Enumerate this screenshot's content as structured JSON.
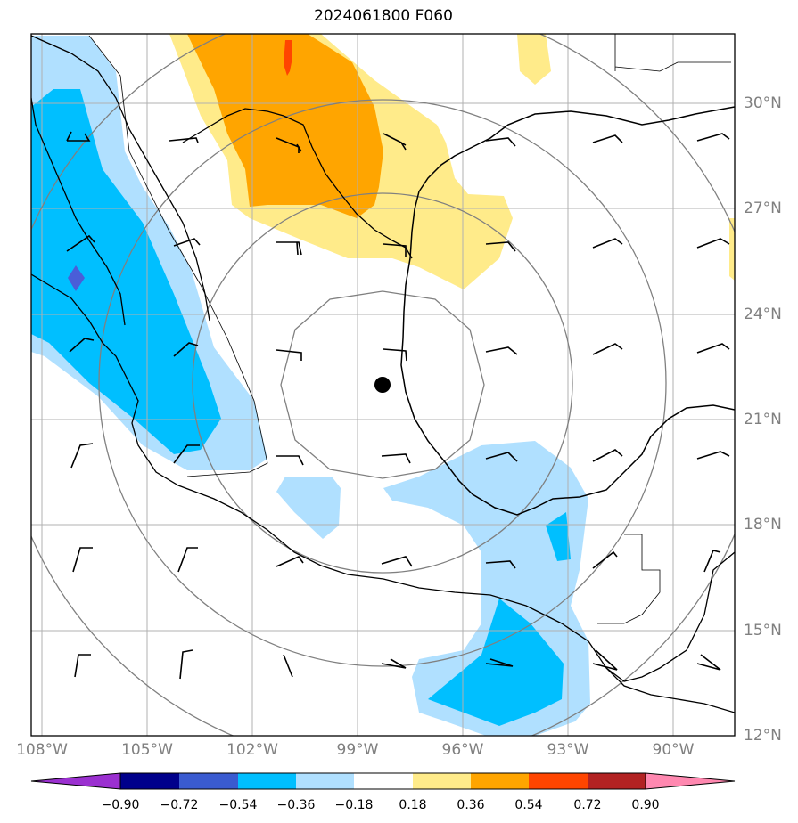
{
  "title": "2024061800 F060",
  "map": {
    "lon_labels": [
      "108°W",
      "105°W",
      "102°W",
      "99°W",
      "96°W",
      "93°W",
      "90°W"
    ],
    "lat_labels": [
      "30°N",
      "27°N",
      "24°N",
      "21°N",
      "18°N",
      "15°N",
      "12°N"
    ],
    "center_marker": "black-dot"
  },
  "colorbar": {
    "ticks": [
      "−0.90",
      "−0.72",
      "−0.54",
      "−0.36",
      "−0.18",
      "0.18",
      "0.36",
      "0.54",
      "0.72",
      "0.90"
    ],
    "colors": [
      "#9b30d0",
      "#00008b",
      "#3a5bd0",
      "#00bfff",
      "#b0e0ff",
      "#ffffff",
      "#ffeb8a",
      "#ffa500",
      "#ff4500",
      "#b22222",
      "#ff88b0"
    ]
  },
  "field_colors": {
    "light_blue": "#b0e0ff",
    "deep_sky_blue": "#00bfff",
    "royal_blue": "#4a5ed8",
    "light_yellow": "#ffeb8a",
    "orange": "#ffa500",
    "orange_red": "#ff4500"
  }
}
